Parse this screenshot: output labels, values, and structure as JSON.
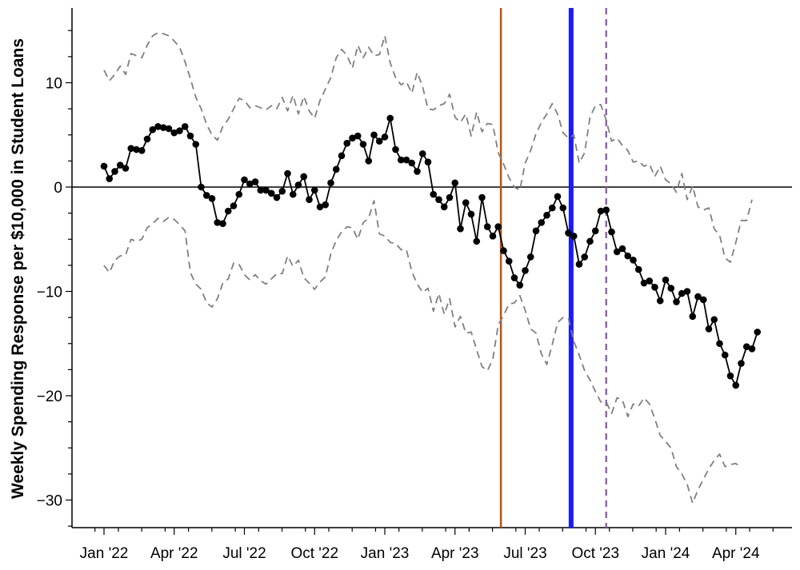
{
  "chart_data": {
    "type": "line",
    "title": "",
    "xlabel": "",
    "ylabel": "Weekly Spending Response per $10,000 in Student Loans",
    "ylim": [
      -33,
      17
    ],
    "y_ticks": [
      10,
      0,
      -10,
      -20,
      -30
    ],
    "x_ticks": [
      {
        "label": "Jan '22",
        "week": 0
      },
      {
        "label": "Apr '22",
        "week": 13
      },
      {
        "label": "Jul '22",
        "week": 26
      },
      {
        "label": "Oct '22",
        "week": 39
      },
      {
        "label": "Jan '23",
        "week": 52
      },
      {
        "label": "Apr '23",
        "week": 65
      },
      {
        "label": "Jul '23",
        "week": 78
      },
      {
        "label": "Oct '23",
        "week": 91
      },
      {
        "label": "Jan '24",
        "week": 104
      },
      {
        "label": "Apr '24",
        "week": 117
      }
    ],
    "reference_lines": [
      {
        "week": 73.5,
        "color": "#b5541a",
        "style": "solid"
      },
      {
        "week": 86.5,
        "color": "#1a1aff",
        "style": "solid-thick"
      },
      {
        "week": 93,
        "color": "#8a6aa8",
        "style": "dashed"
      }
    ],
    "series": [
      {
        "role": "estimate",
        "color": "#000000",
        "values": [
          2.0,
          0.8,
          1.5,
          2.1,
          1.8,
          3.7,
          3.6,
          3.5,
          4.6,
          5.5,
          5.8,
          5.7,
          5.6,
          5.2,
          5.4,
          5.8,
          4.9,
          4.1,
          0.0,
          -0.8,
          -1.1,
          -3.4,
          -3.5,
          -2.3,
          -1.8,
          -0.7,
          0.7,
          0.3,
          0.5,
          -0.3,
          -0.3,
          -0.6,
          -1.0,
          -0.4,
          1.3,
          -0.7,
          0.2,
          1.0,
          -1.2,
          -0.3,
          -1.9,
          -1.7,
          0.4,
          1.7,
          3.0,
          4.2,
          4.7,
          4.9,
          4.1,
          2.5,
          5.0,
          4.4,
          4.8,
          6.6,
          3.6,
          2.6,
          2.6,
          2.3,
          1.5,
          3.2,
          2.4,
          -0.7,
          -1.2,
          -1.9,
          -1.0,
          0.4,
          -4.0,
          -1.5,
          -2.6,
          -5.2,
          -1.0,
          -3.8,
          -4.7,
          -3.8,
          -6.1,
          -7.1,
          -8.7,
          -9.4,
          -8.0,
          -6.7,
          -4.2,
          -3.4,
          -2.7,
          -2.0,
          -0.9,
          -2.0,
          -4.4,
          -4.7,
          -7.4,
          -6.7,
          -5.2,
          -4.2,
          -2.3,
          -2.2,
          -4.3,
          -6.2,
          -5.9,
          -6.6,
          -7.0,
          -7.9,
          -9.2,
          -9.0,
          -9.6,
          -10.9,
          -8.9,
          -9.7,
          -11.0,
          -10.2,
          -10.0,
          -12.4,
          -10.5,
          -10.8,
          -13.6,
          -12.7,
          -15.0,
          -16.1,
          -18.1,
          -19.0,
          -16.9,
          -15.3,
          -15.5,
          -13.9
        ]
      },
      {
        "role": "upper-bound",
        "color": "#808080",
        "values": [
          11.2,
          10.2,
          10.8,
          11.6,
          10.8,
          12.8,
          12.6,
          12.4,
          13.6,
          14.5,
          14.8,
          14.7,
          14.5,
          14.0,
          13.4,
          12.0,
          10.4,
          8.6,
          7.5,
          6.0,
          5.0,
          4.5,
          5.8,
          6.5,
          7.5,
          8.5,
          8.3,
          7.6,
          7.8,
          7.6,
          7.4,
          7.8,
          7.5,
          8.6,
          7.3,
          8.8,
          7.0,
          8.7,
          7.3,
          6.6,
          8.3,
          9.4,
          10.5,
          12.4,
          13.2,
          12.6,
          11.4,
          13.6,
          12.4,
          13.4,
          12.6,
          12.7,
          14.5,
          11.9,
          10.5,
          9.8,
          10.1,
          9.0,
          11.0,
          9.6,
          7.5,
          7.4,
          7.8,
          8.0,
          8.9,
          6.7,
          6.2,
          7.0,
          4.9,
          7.2,
          5.3,
          6.1,
          6.0,
          3.3,
          2.2,
          0.9,
          0.0,
          -0.3,
          2.3,
          3.5,
          5.1,
          6.2,
          7.0,
          8.0,
          7.0,
          5.2,
          4.7,
          5.0,
          2.3,
          3.3,
          6.7,
          7.8,
          7.9,
          6.4,
          4.4,
          4.7,
          4.0,
          3.5,
          2.4,
          2.5,
          2.0,
          2.2,
          1.0,
          2.0,
          0.7,
          0.3,
          -0.5,
          1.3,
          -1.2,
          0.1,
          -1.9,
          -2.2,
          -2.0,
          -4.0,
          -4.6,
          -6.8,
          -7.2,
          -5.3,
          -3.2,
          -3.2,
          -1.2
        ]
      },
      {
        "role": "lower-bound",
        "color": "#808080",
        "values": [
          -7.5,
          -8.2,
          -7.0,
          -6.6,
          -6.5,
          -5.0,
          -5.2,
          -5.0,
          -3.9,
          -3.5,
          -3.0,
          -3.3,
          -2.9,
          -3.1,
          -3.6,
          -4.2,
          -8.2,
          -9.3,
          -9.8,
          -11.1,
          -11.5,
          -10.7,
          -9.2,
          -8.8,
          -7.3,
          -7.4,
          -8.4,
          -8.9,
          -8.4,
          -9.0,
          -9.3,
          -8.8,
          -8.3,
          -8.3,
          -6.6,
          -7.6,
          -7.0,
          -8.7,
          -9.2,
          -9.8,
          -9.1,
          -8.6,
          -6.4,
          -5.1,
          -4.3,
          -3.8,
          -3.9,
          -5.0,
          -3.4,
          -3.0,
          -1.3,
          -4.5,
          -4.7,
          -5.3,
          -5.4,
          -6.0,
          -6.0,
          -8.1,
          -9.3,
          -10.1,
          -9.7,
          -11.9,
          -10.2,
          -12.2,
          -10.7,
          -13.4,
          -12.4,
          -14.0,
          -13.9,
          -15.6,
          -17.2,
          -17.6,
          -16.5,
          -13.2,
          -12.3,
          -11.2,
          -11.1,
          -10.4,
          -11.8,
          -13.6,
          -14.0,
          -16.0,
          -17.0,
          -15.1,
          -13.0,
          -12.5,
          -12.6,
          -14.8,
          -16.1,
          -17.6,
          -18.5,
          -19.6,
          -20.6,
          -20.6,
          -21.7,
          -20.2,
          -20.4,
          -22.0,
          -20.8,
          -21.0,
          -20.2,
          -20.8,
          -22.2,
          -23.8,
          -24.4,
          -25.0,
          -26.8,
          -27.5,
          -28.5,
          -30.3,
          -29.0,
          -28.0,
          -27.0,
          -26.2,
          -25.6,
          -26.8,
          -26.6,
          -26.5,
          -26.9
        ]
      }
    ]
  }
}
